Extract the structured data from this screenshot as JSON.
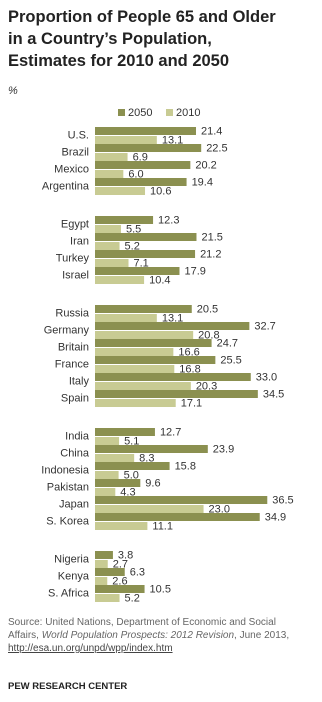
{
  "chart_data": {
    "type": "bar",
    "orientation": "horizontal",
    "title": [
      "Proportion of People 65 and Older",
      "in a Country’s Population,",
      "Estimates for 2010 and 2050"
    ],
    "unit": "%",
    "categories": [
      "U.S.",
      "Brazil",
      "Mexico",
      "Argentina",
      null,
      "Egypt",
      "Iran",
      "Turkey",
      "Israel",
      null,
      "Russia",
      "Germany",
      "Britain",
      "France",
      "Italy",
      "Spain",
      null,
      "India",
      "China",
      "Indonesia",
      "Pakistan",
      "Japan",
      "S. Korea",
      null,
      "Nigeria",
      "Kenya",
      "S. Africa"
    ],
    "series": [
      {
        "name": "2050",
        "color": "#8b9050",
        "values": [
          21.4,
          22.5,
          20.2,
          19.4,
          null,
          12.3,
          21.5,
          21.2,
          17.9,
          null,
          20.5,
          32.7,
          24.7,
          25.5,
          33.0,
          34.5,
          null,
          12.7,
          23.9,
          15.8,
          9.6,
          36.5,
          34.9,
          null,
          3.8,
          6.3,
          10.5
        ],
        "value_labels": [
          "21.4",
          "22.5",
          "20.2",
          "19.4",
          null,
          "12.3",
          "21.5",
          "21.2",
          "17.9",
          null,
          "20.5",
          "32.7",
          "24.7",
          "25.5",
          "33.0",
          "34.5",
          null,
          "12.7",
          "23.9",
          "15.8",
          "9.6",
          "36.5",
          "34.9",
          null,
          "3.8",
          "6.3",
          "10.5"
        ]
      },
      {
        "name": "2010",
        "color": "#c8cb93",
        "values": [
          13.1,
          6.9,
          6.0,
          10.6,
          null,
          5.5,
          5.2,
          7.1,
          10.4,
          null,
          13.1,
          20.8,
          16.6,
          16.8,
          20.3,
          17.1,
          null,
          5.1,
          8.3,
          5.0,
          4.3,
          23.0,
          11.1,
          null,
          2.7,
          2.6,
          5.2
        ],
        "value_labels": [
          "13.1",
          "6.9",
          "6.0",
          "10.6",
          null,
          "5.5",
          "5.2",
          "7.1",
          "10.4",
          null,
          "13.1",
          "20.8",
          "16.6",
          "16.8",
          "20.3",
          "17.1",
          null,
          "5.1",
          "8.3",
          "5.0",
          "4.3",
          "23.0",
          "11.1",
          null,
          "2.7",
          "2.6",
          "5.2"
        ]
      }
    ],
    "source": [
      "Source: United Nations, Department of Economic and Social Affairs, ",
      "World Population Prospects: 2012 Revision",
      ", June 2013, ",
      "http://esa.un.org/unpd/wpp/index.htm"
    ],
    "credit": "PEW RESEARCH CENTER"
  }
}
